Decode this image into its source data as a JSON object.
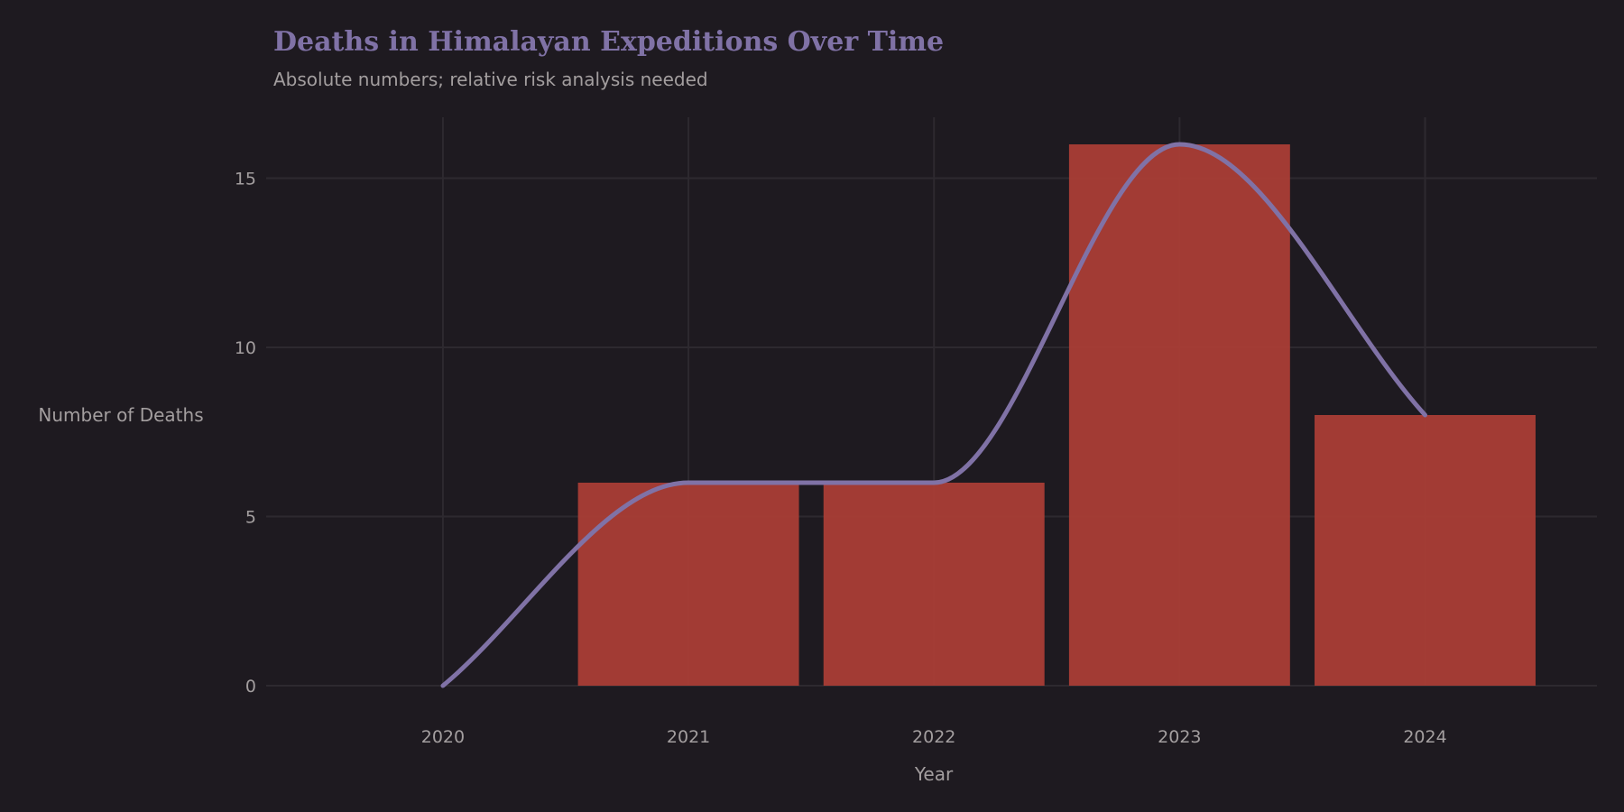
{
  "chart_data": {
    "type": "bar",
    "title": "Deaths in Himalayan Expeditions Over Time",
    "subtitle": "Absolute numbers; relative risk analysis needed",
    "xlabel": "Year",
    "ylabel": "Number of Deaths",
    "x": [
      2020,
      2021,
      2022,
      2023,
      2024
    ],
    "x_ticks": [
      "2020",
      "2021",
      "2022",
      "2023",
      "2024"
    ],
    "xlim": [
      2019.28,
      2024.7
    ],
    "y_ticks": [
      0,
      5,
      10,
      15
    ],
    "ylim": [
      0,
      16.8
    ],
    "grid": true,
    "series": [
      {
        "kind": "bar",
        "x": [
          2021,
          2022,
          2023,
          2024
        ],
        "values": [
          6,
          6,
          16,
          8
        ]
      },
      {
        "kind": "line",
        "x": [
          2020,
          2021,
          2022,
          2023,
          2024
        ],
        "values": [
          0,
          6,
          6,
          16,
          8
        ]
      }
    ],
    "colors": {
      "background": "#1e1a20",
      "bar": "#aa3d36",
      "line": "#8072a6",
      "title": "#8072a6",
      "text": "#a39e9f",
      "grid": "#2d292f"
    }
  }
}
